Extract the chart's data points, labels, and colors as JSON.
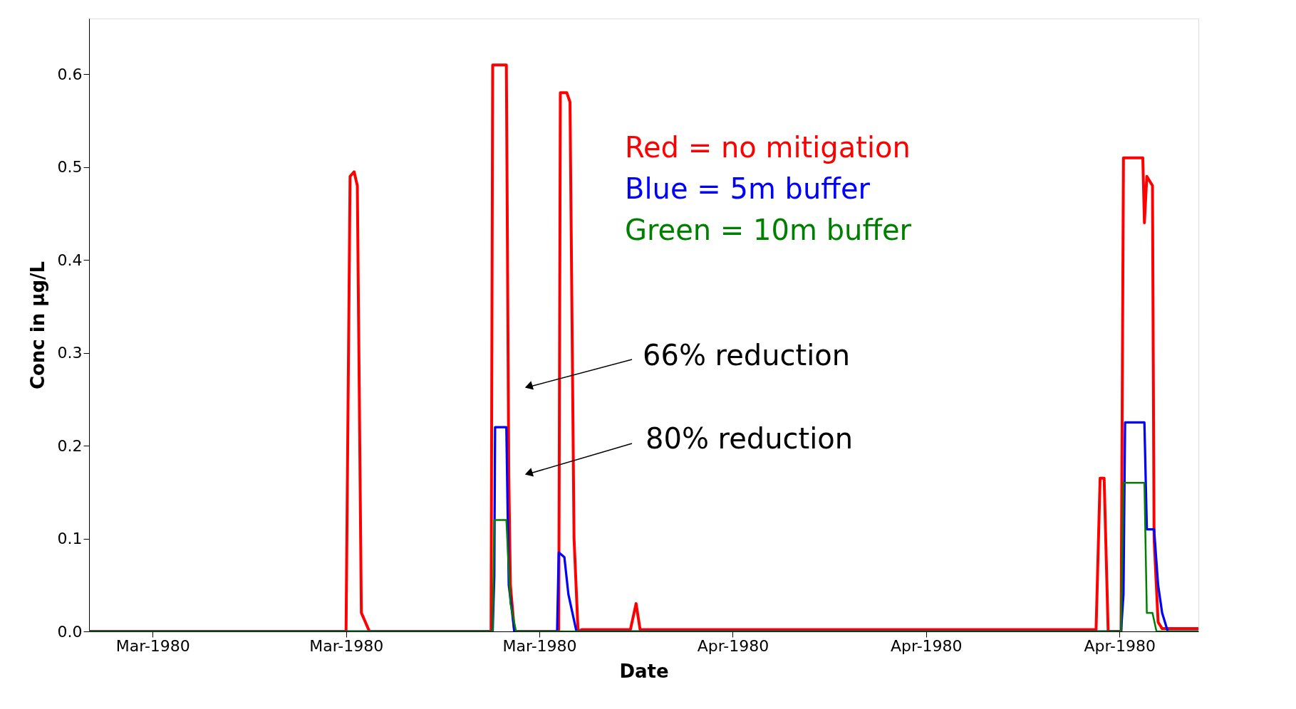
{
  "chart_data": {
    "type": "line",
    "xlabel": "Date",
    "ylabel": "Conc in µg/L",
    "xlim": [
      "1980-03-06T17:00",
      "1980-05-03T02:00"
    ],
    "ylim": [
      0,
      0.66
    ],
    "xticks": [
      {
        "value": "1980-03-10",
        "label": "Mar-1980"
      },
      {
        "value": "1980-03-20",
        "label": "Mar-1980"
      },
      {
        "value": "1980-03-30",
        "label": "Mar-1980"
      },
      {
        "value": "1980-04-09",
        "label": "Apr-1980"
      },
      {
        "value": "1980-04-19",
        "label": "Apr-1980"
      },
      {
        "value": "1980-04-29",
        "label": "Apr-1980"
      }
    ],
    "yticks": [
      {
        "value": 0,
        "label": "0.0"
      },
      {
        "value": 0.1,
        "label": "0.1"
      },
      {
        "value": 0.2,
        "label": "0.2"
      },
      {
        "value": 0.3,
        "label": "0.3"
      },
      {
        "value": 0.4,
        "label": "0.4"
      },
      {
        "value": 0.5,
        "label": "0.5"
      },
      {
        "value": 0.6,
        "label": "0.6"
      }
    ],
    "grid": false,
    "legend": "top",
    "marker": "none",
    "line_style": "solid",
    "series": [
      {
        "name": "Red = no mitigation",
        "color": "#ff0000",
        "x": [
          "1980-03-06T17:00",
          "1980-03-20T00:00",
          "1980-03-20T05:00",
          "1980-03-20T10:00",
          "1980-03-20T14:00",
          "1980-03-20T19:00",
          "1980-03-21T05:00",
          "1980-03-27T12:00",
          "1980-03-27T14:00",
          "1980-03-28T07:00",
          "1980-03-28T10:00",
          "1980-03-28T12:00",
          "1980-03-28T17:00",
          "1980-03-31T00:00",
          "1980-03-31T02:00",
          "1980-03-31T10:00",
          "1980-03-31T14:00",
          "1980-03-31T19:00",
          "1980-04-01T00:00",
          "1980-04-01T05:00",
          "1980-04-03T17:00",
          "1980-04-04T00:00",
          "1980-04-04T05:00",
          "1980-04-27T19:00",
          "1980-04-28T00:00",
          "1980-04-28T05:00",
          "1980-04-28T10:00",
          "1980-04-29T02:00",
          "1980-04-29T05:00",
          "1980-04-30T05:00",
          "1980-04-30T07:00",
          "1980-04-30T10:00",
          "1980-04-30T17:00",
          "1980-04-30T19:00",
          "1980-05-01T00:00",
          "1980-05-01T05:00",
          "1980-05-03T02:00"
        ],
        "values": [
          0,
          0,
          0.49,
          0.495,
          0.48,
          0.02,
          0,
          0,
          0.61,
          0.61,
          0.17,
          0.05,
          0,
          0,
          0.58,
          0.58,
          0.57,
          0.1,
          0,
          0.002,
          0.002,
          0.03,
          0.002,
          0.002,
          0.165,
          0.165,
          0,
          0,
          0.51,
          0.51,
          0.44,
          0.49,
          0.48,
          0.1,
          0.01,
          0.003,
          0.003
        ]
      },
      {
        "name": "Blue = 5m buffer",
        "color": "#0000ff",
        "x": [
          "1980-03-06T17:00",
          "1980-03-27T14:00",
          "1980-03-27T16:00",
          "1980-03-27T17:00",
          "1980-03-28T07:00",
          "1980-03-28T10:00",
          "1980-03-28T17:00",
          "1980-03-30T22:00",
          "1980-03-31T00:00",
          "1980-03-31T07:00",
          "1980-03-31T12:00",
          "1980-03-31T22:00",
          "1980-04-29T02:00",
          "1980-04-29T05:00",
          "1980-04-29T07:00",
          "1980-04-30T07:00",
          "1980-04-30T10:00",
          "1980-04-30T19:00",
          "1980-05-01T00:00",
          "1980-05-01T05:00",
          "1980-05-01T12:00",
          "1980-05-03T02:00"
        ],
        "values": [
          0,
          0,
          0.06,
          0.22,
          0.22,
          0.05,
          0,
          0,
          0.085,
          0.08,
          0.04,
          0,
          0,
          0.04,
          0.225,
          0.225,
          0.11,
          0.11,
          0.05,
          0.02,
          0,
          0
        ]
      },
      {
        "name": "Green = 10m buffer",
        "color": "#008000",
        "x": [
          "1980-03-06T17:00",
          "1980-03-27T14:00",
          "1980-03-27T16:00",
          "1980-03-28T07:00",
          "1980-03-28T12:00",
          "1980-03-28T19:00",
          "1980-04-29T02:00",
          "1980-04-29T05:00",
          "1980-04-30T07:00",
          "1980-04-30T10:00",
          "1980-04-30T17:00",
          "1980-04-30T22:00",
          "1980-05-03T02:00"
        ],
        "values": [
          0,
          0,
          0.12,
          0.12,
          0.03,
          0,
          0,
          0.16,
          0.16,
          0.02,
          0.02,
          0,
          0
        ]
      }
    ],
    "annotations": [
      "66% reduction",
      "80% reduction"
    ]
  }
}
